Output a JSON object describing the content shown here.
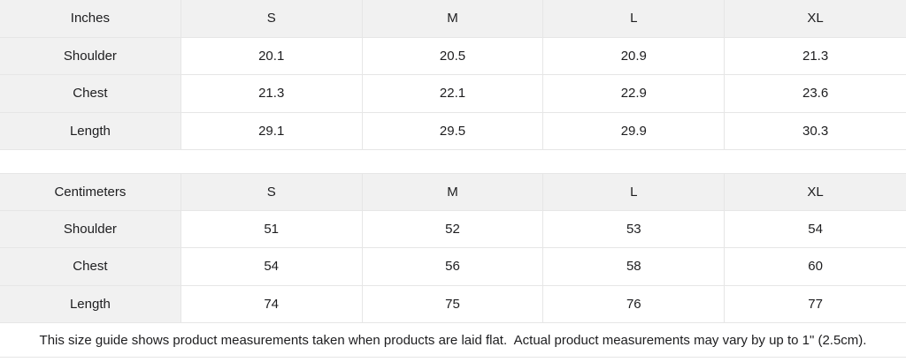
{
  "tables": [
    {
      "unit_label": "Inches",
      "sizes": [
        "S",
        "M",
        "L",
        "XL"
      ],
      "rows": [
        {
          "label": "Shoulder",
          "values": [
            "20.1",
            "20.5",
            "20.9",
            "21.3"
          ]
        },
        {
          "label": "Chest",
          "values": [
            "21.3",
            "22.1",
            "22.9",
            "23.6"
          ]
        },
        {
          "label": "Length",
          "values": [
            "29.1",
            "29.5",
            "29.9",
            "30.3"
          ]
        }
      ]
    },
    {
      "unit_label": "Centimeters",
      "sizes": [
        "S",
        "M",
        "L",
        "XL"
      ],
      "rows": [
        {
          "label": "Shoulder",
          "values": [
            "51",
            "52",
            "53",
            "54"
          ]
        },
        {
          "label": "Chest",
          "values": [
            "54",
            "56",
            "58",
            "60"
          ]
        },
        {
          "label": "Length",
          "values": [
            "74",
            "75",
            "76",
            "77"
          ]
        }
      ]
    }
  ],
  "footer": {
    "note": "This size guide shows product measurements taken when products are laid flat.  Actual product measurements may vary by up to 1\" (2.5cm)."
  },
  "colors": {
    "header_background": "#f1f1f1",
    "border": "#e6e6e6",
    "text": "#1d1d1f",
    "background": "#ffffff"
  }
}
